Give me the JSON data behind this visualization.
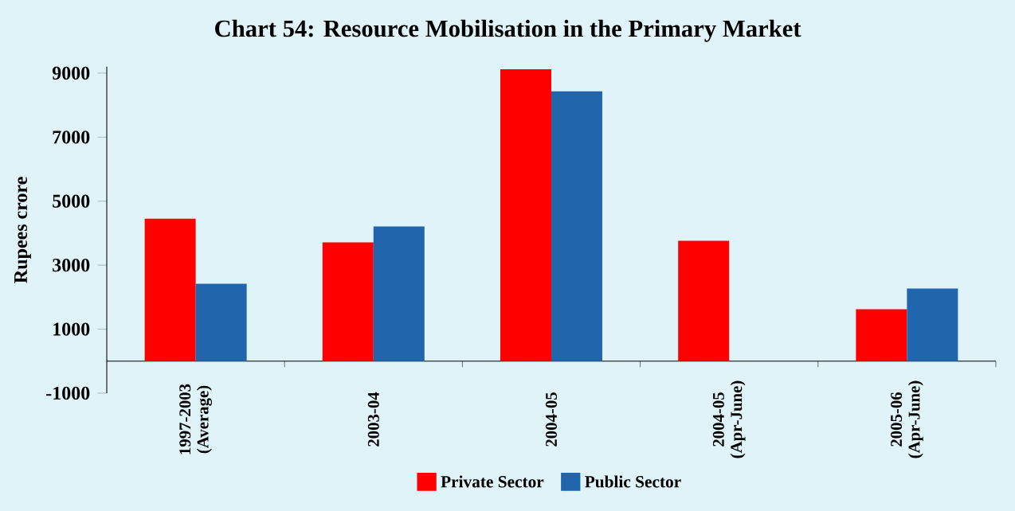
{
  "chart_data": {
    "type": "bar",
    "title": "Chart 54: Resource Mobilisation in the Primary Market",
    "ylabel": "Rupees crore",
    "categories": [
      "1997-2003 (Average)",
      "2003-04",
      "2004-05",
      "2004-05 (Apr-June)",
      "2005-06 (Apr-June)"
    ],
    "series": [
      {
        "name": "Private Sector",
        "color": "#ff0000",
        "values": [
          4450,
          3710,
          9120,
          3760,
          1620
        ]
      },
      {
        "name": "Public Sector",
        "color": "#2166ac",
        "values": [
          2420,
          4210,
          8430,
          null,
          2270
        ]
      }
    ],
    "ylim": [
      -1000,
      9200
    ],
    "yticks": [
      -1000,
      1000,
      3000,
      5000,
      7000,
      9000
    ],
    "grid": false,
    "legend": "bottom"
  }
}
